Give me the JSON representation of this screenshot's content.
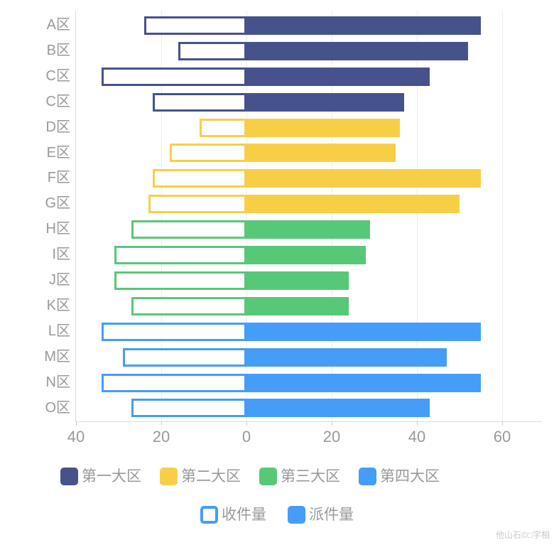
{
  "chart_data": {
    "type": "bar",
    "variant": "horizontal-diverging",
    "title": "",
    "categories": [
      "A区",
      "B区",
      "C区",
      "C区",
      "D区",
      "E区",
      "F区",
      "G区",
      "H区",
      "I区",
      "J区",
      "K区",
      "L区",
      "M区",
      "N区",
      "O区"
    ],
    "series": [
      {
        "name": "收件量",
        "direction": "left",
        "style": "outline",
        "values": [
          24,
          16,
          34,
          22,
          11,
          18,
          22,
          23,
          27,
          31,
          31,
          27,
          34,
          29,
          34,
          27
        ]
      },
      {
        "name": "派件量",
        "direction": "right",
        "style": "solid",
        "values": [
          55,
          52,
          43,
          37,
          36,
          35,
          55,
          50,
          29,
          28,
          24,
          24,
          55,
          47,
          55,
          43
        ]
      }
    ],
    "groups": [
      {
        "name": "第一大区",
        "color": "#46528C",
        "rows": [
          0,
          1,
          2,
          3
        ]
      },
      {
        "name": "第二大区",
        "color": "#F7CF47",
        "rows": [
          4,
          5,
          6,
          7
        ]
      },
      {
        "name": "第三大区",
        "color": "#57C877",
        "rows": [
          8,
          9,
          10,
          11
        ]
      },
      {
        "name": "第四大区",
        "color": "#459DF7",
        "rows": [
          12,
          13,
          14,
          15
        ]
      }
    ],
    "x_ticks": [
      -40,
      -20,
      0,
      20,
      40,
      60
    ],
    "x_tick_labels": [
      "40",
      "20",
      "0",
      "20",
      "40",
      "60"
    ],
    "xlim": [
      -40,
      69
    ],
    "grid": true,
    "legend_position": "bottom"
  },
  "legend": {
    "region_items": [
      {
        "label": "第一大区",
        "color": "#46528C"
      },
      {
        "label": "第二大区",
        "color": "#F7CF47"
      },
      {
        "label": "第三大区",
        "color": "#57C877"
      },
      {
        "label": "第四大区",
        "color": "#459DF7"
      }
    ],
    "series_items": [
      {
        "label": "收件量",
        "style": "outline",
        "color": "#459DF7"
      },
      {
        "label": "派件量",
        "style": "solid",
        "color": "#459DF7"
      }
    ]
  },
  "watermark": "他山石©□字相",
  "colors": {
    "axis_line": "#dddddd",
    "gridline": "#ececec",
    "tick": "#cccccc",
    "label_text": "#999999"
  }
}
